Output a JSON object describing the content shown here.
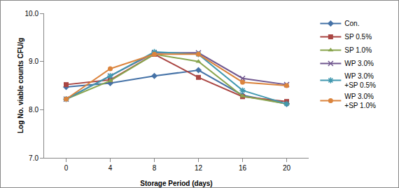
{
  "chart_data": {
    "type": "line",
    "x_label": "Storage Period (days)",
    "y_label": "Log No. viable counts CFU/g",
    "categories": [
      "0",
      "4",
      "8",
      "12",
      "16",
      "20"
    ],
    "ylim": [
      7,
      10
    ],
    "yticks": [
      {
        "value": 7,
        "label": "7.0"
      },
      {
        "value": 8,
        "label": "8.0"
      },
      {
        "value": 9,
        "label": "9.0"
      },
      {
        "value": 10,
        "label": "10.0"
      }
    ],
    "grid": false,
    "legend": "right",
    "series": [
      {
        "name": "Con.",
        "color": "#4572A7",
        "marker": "diamond",
        "values": [
          8.47,
          8.55,
          8.7,
          8.82,
          8.3,
          8.12
        ]
      },
      {
        "name": "SP 0.5%",
        "color": "#AA4643",
        "marker": "square",
        "values": [
          8.52,
          8.62,
          9.15,
          8.67,
          8.27,
          8.17
        ]
      },
      {
        "name": "SP 1.0%",
        "color": "#89A54E",
        "marker": "triangle",
        "values": [
          8.22,
          8.6,
          9.15,
          9.0,
          8.28,
          8.12
        ]
      },
      {
        "name": "WP 3.0%",
        "color": "#71588F",
        "marker": "x",
        "values": [
          8.22,
          8.7,
          9.18,
          9.18,
          8.65,
          8.52
        ]
      },
      {
        "name": "WP 3.0%\n+SP 0.5%",
        "color": "#4198AF",
        "marker": "star",
        "values": [
          8.22,
          8.7,
          9.2,
          9.15,
          8.4,
          8.12
        ]
      },
      {
        "name": "WP 3.0%\n+SP 1.0%",
        "color": "#DB843D",
        "marker": "circle",
        "values": [
          8.22,
          8.85,
          9.15,
          9.15,
          8.57,
          8.5
        ]
      }
    ]
  }
}
